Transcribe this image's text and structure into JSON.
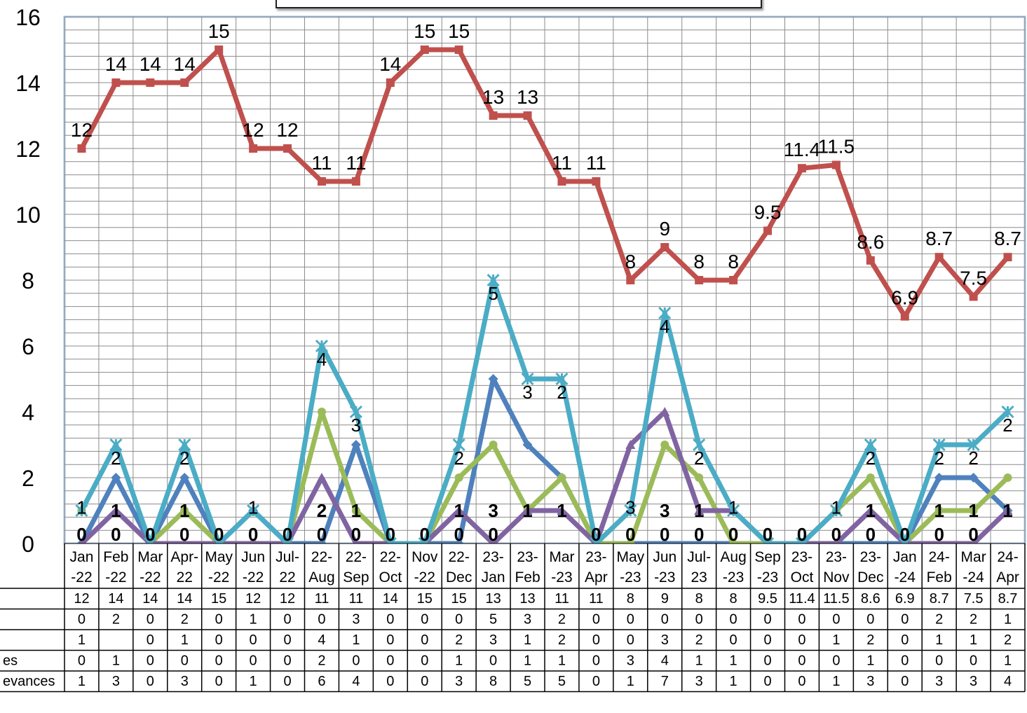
{
  "chart_data": {
    "type": "line",
    "title": "",
    "xlabel": "",
    "ylabel": "",
    "ylim": [
      0,
      16
    ],
    "yticks": [
      0,
      2,
      4,
      6,
      8,
      10,
      12,
      14,
      16
    ],
    "grid": true,
    "legend": "data table below chart",
    "categories": [
      [
        "Jan",
        "-22"
      ],
      [
        "Feb",
        "-22"
      ],
      [
        "Mar",
        "-22"
      ],
      [
        "Apr-",
        "22"
      ],
      [
        "May",
        "-22"
      ],
      [
        "Jun",
        "-22"
      ],
      [
        "Jul-",
        "22"
      ],
      [
        "22-",
        "Aug"
      ],
      [
        "22-",
        "Sep"
      ],
      [
        "22-",
        "Oct"
      ],
      [
        "Nov",
        "-22"
      ],
      [
        "22-",
        "Dec"
      ],
      [
        "23-",
        "Jan"
      ],
      [
        "23-",
        "Feb"
      ],
      [
        "Mar",
        "-23"
      ],
      [
        "23-",
        "Apr"
      ],
      [
        "May",
        "-23"
      ],
      [
        "Jun",
        "-23"
      ],
      [
        "Jul-",
        "23"
      ],
      [
        "Aug",
        "-23"
      ],
      [
        "Sep",
        "-23"
      ],
      [
        "23-",
        "Oct"
      ],
      [
        "23-",
        "Nov"
      ],
      [
        "23-",
        "Dec"
      ],
      [
        "Jan",
        "-24"
      ],
      [
        "24-",
        "Feb"
      ],
      [
        "Mar",
        "-24"
      ],
      [
        "24-",
        "Apr"
      ]
    ],
    "series": [
      {
        "name": "",
        "color": "#C0504D",
        "marker": "square",
        "values": [
          12,
          14,
          14,
          14,
          15,
          12,
          12,
          11,
          11,
          14,
          15,
          15,
          13,
          13,
          11,
          11,
          8,
          9,
          8,
          8,
          9.5,
          11.4,
          11.5,
          8.6,
          6.9,
          8.7,
          7.5,
          8.7
        ]
      },
      {
        "name": "",
        "color": "#4F81BD",
        "marker": "diamond",
        "values": [
          0,
          2,
          0,
          2,
          0,
          1,
          0,
          0,
          3,
          0,
          0,
          0,
          5,
          3,
          2,
          0,
          0,
          0,
          0,
          0,
          0,
          0,
          0,
          0,
          0,
          2,
          2,
          1
        ]
      },
      {
        "name": "",
        "color": "#9BBB59",
        "marker": "circle",
        "values": [
          1,
          null,
          0,
          1,
          0,
          0,
          0,
          4,
          1,
          0,
          0,
          2,
          3,
          1,
          2,
          0,
          0,
          3,
          2,
          0,
          0,
          0,
          1,
          2,
          0,
          1,
          1,
          2
        ]
      },
      {
        "name": "es",
        "color": "#8064A2",
        "marker": "triangle",
        "values": [
          0,
          1,
          0,
          0,
          0,
          0,
          0,
          2,
          0,
          0,
          0,
          1,
          0,
          1,
          1,
          0,
          3,
          4,
          1,
          1,
          0,
          0,
          0,
          1,
          0,
          0,
          0,
          1
        ]
      },
      {
        "name": "evances",
        "color": "#4BACC6",
        "marker": "star",
        "values": [
          1,
          3,
          0,
          3,
          0,
          1,
          0,
          6,
          4,
          0,
          0,
          3,
          8,
          5,
          5,
          0,
          1,
          7,
          3,
          1,
          0,
          0,
          1,
          3,
          0,
          3,
          3,
          4
        ]
      }
    ],
    "table": {
      "rows": [
        [
          "12",
          "14",
          "14",
          "14",
          "15",
          "12",
          "12",
          "11",
          "11",
          "14",
          "15",
          "15",
          "13",
          "13",
          "11",
          "11",
          "8",
          "9",
          "8",
          "8",
          "9.5",
          "11.4",
          "11.5",
          "8.6",
          "6.9",
          "8.7",
          "7.5",
          "8.7"
        ],
        [
          "0",
          "2",
          "0",
          "2",
          "0",
          "1",
          "0",
          "0",
          "3",
          "0",
          "0",
          "0",
          "5",
          "3",
          "2",
          "0",
          "0",
          "0",
          "0",
          "0",
          "0",
          "0",
          "0",
          "0",
          "0",
          "2",
          "2",
          "1"
        ],
        [
          "1",
          "",
          "0",
          "1",
          "0",
          "0",
          "0",
          "4",
          "1",
          "0",
          "0",
          "2",
          "3",
          "1",
          "2",
          "0",
          "0",
          "3",
          "2",
          "0",
          "0",
          "0",
          "1",
          "2",
          "0",
          "1",
          "1",
          "2"
        ],
        [
          "0",
          "1",
          "0",
          "0",
          "0",
          "0",
          "0",
          "2",
          "0",
          "0",
          "0",
          "1",
          "0",
          "1",
          "1",
          "0",
          "3",
          "4",
          "1",
          "1",
          "0",
          "0",
          "0",
          "1",
          "0",
          "0",
          "0",
          "1"
        ],
        [
          "1",
          "3",
          "0",
          "3",
          "0",
          "1",
          "0",
          "6",
          "4",
          "0",
          "0",
          "3",
          "8",
          "5",
          "5",
          "0",
          "1",
          "7",
          "3",
          "1",
          "0",
          "0",
          "1",
          "3",
          "0",
          "3",
          "3",
          "4"
        ]
      ]
    },
    "data_labels": {
      "upper_series": [
        "12",
        "14",
        "14",
        "14",
        "15",
        "12",
        "12",
        "11",
        "11",
        "14",
        "15",
        "15",
        "13",
        "13",
        "11",
        "11",
        "8",
        "9",
        "8",
        "8",
        "9.5",
        "11.4",
        "11.5",
        "8.6",
        "6.9",
        "8.7",
        "7.5",
        "8.7"
      ],
      "lower_top": [
        "1",
        "2",
        "",
        "2",
        "",
        "1",
        "",
        "4",
        "3",
        "",
        "",
        "2",
        "5",
        "3",
        "2",
        "",
        "3",
        "4",
        "2",
        "1",
        "",
        "",
        "1",
        "2",
        "",
        "2",
        "2",
        "2"
      ],
      "lower_mid": [
        "",
        "1",
        "",
        "1",
        "",
        "",
        "",
        "2",
        "1",
        "",
        "",
        "1",
        "3",
        "1",
        "1",
        "",
        "",
        "3",
        "1",
        "",
        "",
        "",
        "",
        "1",
        "",
        "1",
        "1",
        "1"
      ],
      "lower_base": [
        "0",
        "0",
        "0",
        "0",
        "0",
        "0",
        "0",
        "0",
        "0",
        "0",
        "0",
        "0",
        "0",
        "",
        "",
        "0",
        "0",
        "0",
        "0",
        "0",
        "0",
        "0",
        "0",
        "0",
        "0",
        "0",
        "0",
        ""
      ]
    }
  }
}
